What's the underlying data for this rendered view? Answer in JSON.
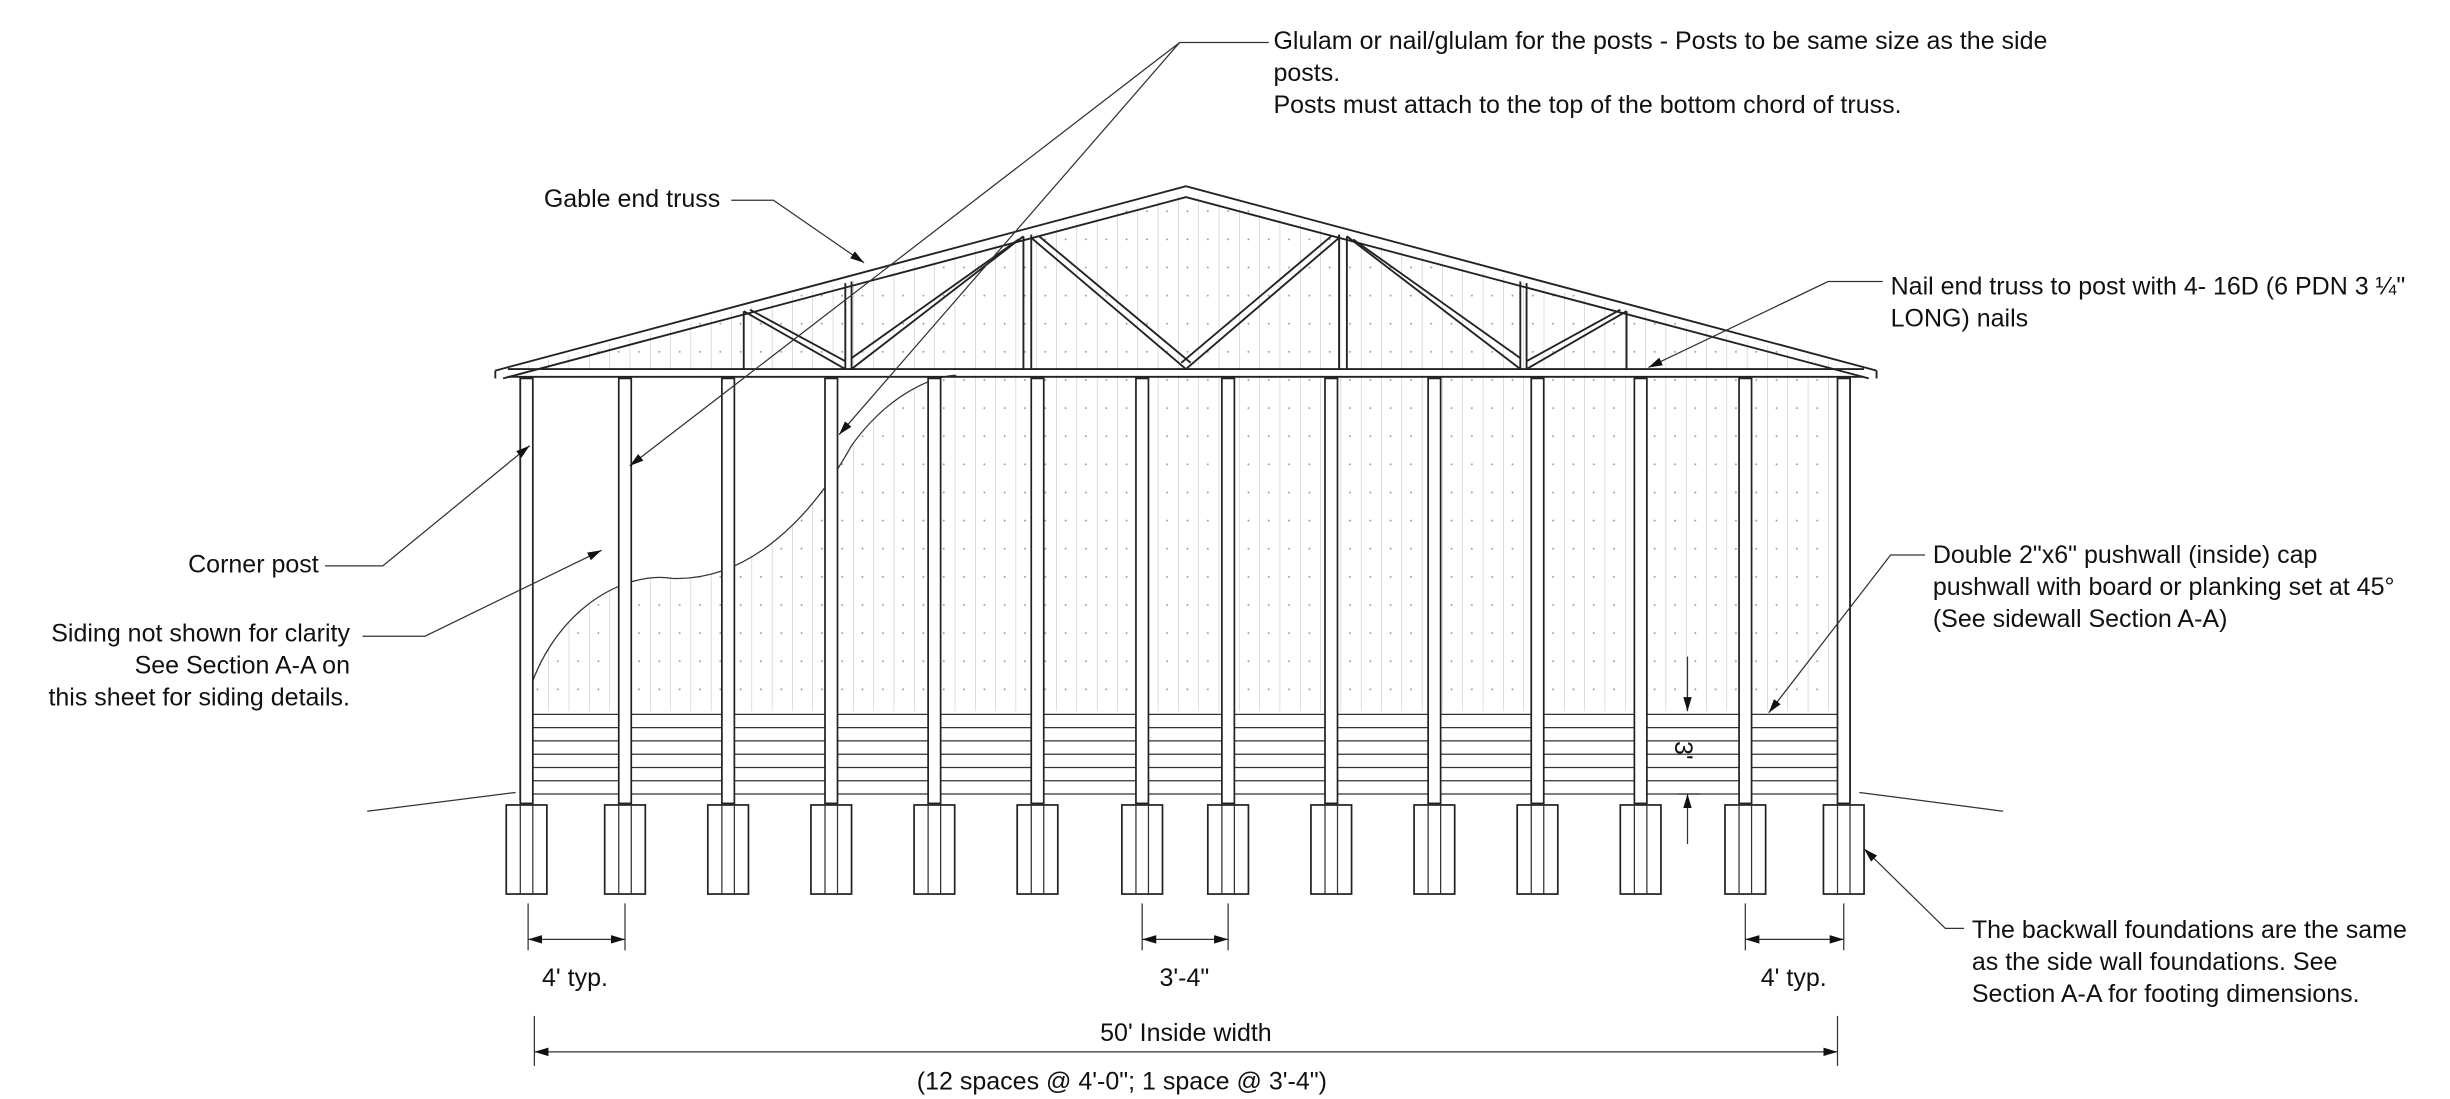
{
  "annotations": {
    "glulam": [
      "Glulam or nail/glulam for the posts - Posts to be same size as the side",
      "posts.",
      "Posts must attach to the top of the bottom chord of truss."
    ],
    "gable_end": [
      "Gable end truss"
    ],
    "nail_end": [
      "Nail end truss to post with 4- 16D (6 PDN 3 ¼\"",
      "LONG) nails"
    ],
    "corner_post": [
      "Corner post"
    ],
    "siding": [
      "Siding not shown for clarity",
      "See Section A-A on",
      "this sheet for siding details."
    ],
    "pushwall": [
      "Double 2\"x6\" pushwall (inside) cap",
      "pushwall with board or planking set at 45°",
      "(See sidewall Section A-A)"
    ],
    "backwall": [
      "The backwall foundations are the same",
      "as the side wall foundations. See",
      "Section A-A for footing dimensions."
    ]
  },
  "dimensions": {
    "left_spacing": "4' typ.",
    "center_spacing": "3'-4\"",
    "right_spacing": "4' typ.",
    "pushwall_height": "3'",
    "inside_width": "50' Inside width",
    "spacing_note": "(12 spaces @ 4'-0\"; 1 space @ 3'-4\")"
  }
}
